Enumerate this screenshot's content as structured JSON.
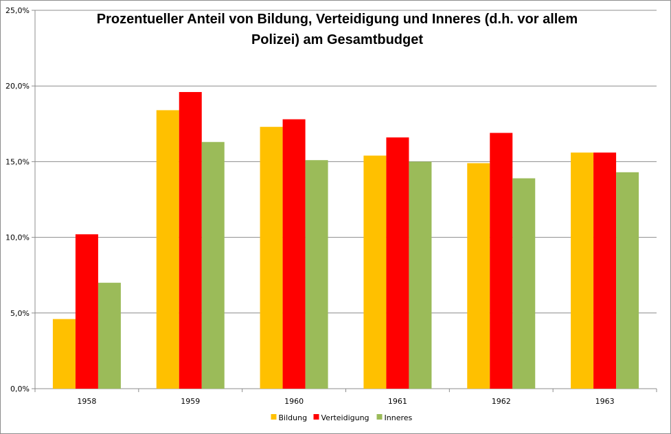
{
  "chart_data": {
    "type": "bar",
    "title_line1": "Prozentueller Anteil von Bildung,  Verteidigung und Inneres (d.h. vor allem",
    "title_line2": "Polizei) am Gesamtbudget",
    "categories": [
      "1958",
      "1959",
      "1960",
      "1961",
      "1962",
      "1963"
    ],
    "series": [
      {
        "name": "Bildung",
        "color": "#FFC000",
        "values": [
          4.6,
          18.4,
          17.3,
          15.4,
          14.9,
          15.6
        ]
      },
      {
        "name": "Verteidigung",
        "color": "#FF0000",
        "values": [
          10.2,
          19.6,
          17.8,
          16.6,
          16.9,
          15.6
        ]
      },
      {
        "name": "Inneres",
        "color": "#9BBB59",
        "values": [
          7.0,
          16.3,
          15.1,
          15.0,
          13.9,
          14.3
        ]
      }
    ],
    "ylim": [
      0,
      25
    ],
    "yticks": [
      "0,0%",
      "5,0%",
      "10,0%",
      "15,0%",
      "20,0%",
      "25,0%"
    ],
    "ytick_values": [
      0,
      5,
      10,
      15,
      20,
      25
    ],
    "grid": true,
    "legend_position": "bottom",
    "xlabel": "",
    "ylabel": ""
  }
}
